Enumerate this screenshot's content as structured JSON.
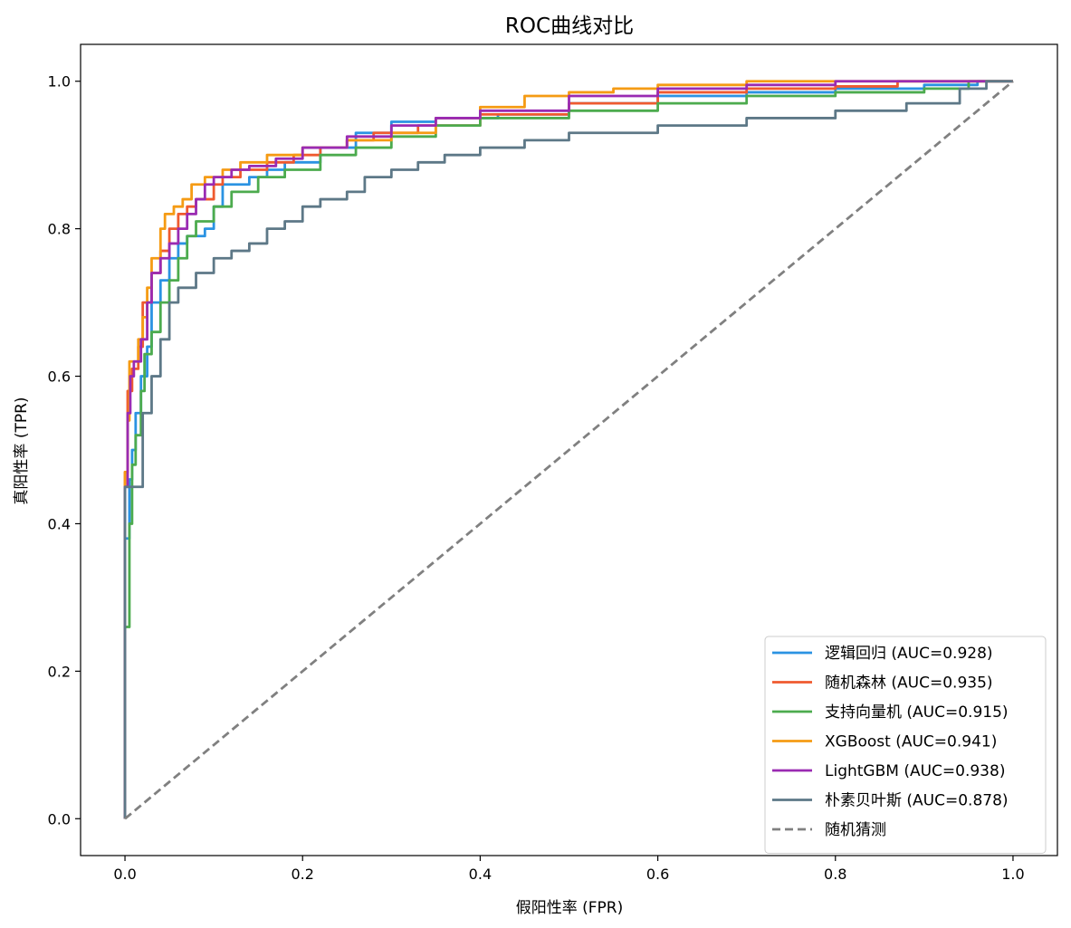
{
  "chart_data": {
    "type": "line",
    "title": "ROC曲线对比",
    "xlabel": "假阳性率 (FPR)",
    "ylabel": "真阳性率 (TPR)",
    "xlim": [
      -0.05,
      1.05
    ],
    "ylim": [
      -0.05,
      1.05
    ],
    "xticks": [
      "0.0",
      "0.2",
      "0.4",
      "0.6",
      "0.8",
      "1.0"
    ],
    "yticks": [
      "0.0",
      "0.2",
      "0.4",
      "0.6",
      "0.8",
      "1.0"
    ],
    "grid": false,
    "legend_position": "bottom-right",
    "series": [
      {
        "name": "逻辑回归 (AUC=0.928)",
        "color": "#2b93e2",
        "style": "solid",
        "points": [
          [
            0,
            0
          ],
          [
            0,
            0.2
          ],
          [
            0.005,
            0.38
          ],
          [
            0.008,
            0.46
          ],
          [
            0.012,
            0.5
          ],
          [
            0.018,
            0.55
          ],
          [
            0.025,
            0.6
          ],
          [
            0.03,
            0.64
          ],
          [
            0.04,
            0.7
          ],
          [
            0.05,
            0.73
          ],
          [
            0.06,
            0.76
          ],
          [
            0.07,
            0.78
          ],
          [
            0.09,
            0.79
          ],
          [
            0.1,
            0.8
          ],
          [
            0.11,
            0.83
          ],
          [
            0.12,
            0.86
          ],
          [
            0.14,
            0.86
          ],
          [
            0.16,
            0.87
          ],
          [
            0.18,
            0.88
          ],
          [
            0.22,
            0.89
          ],
          [
            0.26,
            0.91
          ],
          [
            0.3,
            0.93
          ],
          [
            0.35,
            0.945
          ],
          [
            0.42,
            0.95
          ],
          [
            0.5,
            0.955
          ],
          [
            0.6,
            0.97
          ],
          [
            0.7,
            0.98
          ],
          [
            0.8,
            0.985
          ],
          [
            0.9,
            0.99
          ],
          [
            0.96,
            0.995
          ],
          [
            1,
            1
          ]
        ]
      },
      {
        "name": "随机森林 (AUC=0.935)",
        "color": "#ef5a2f",
        "style": "solid",
        "points": [
          [
            0,
            0
          ],
          [
            0,
            0.3
          ],
          [
            0.003,
            0.47
          ],
          [
            0.008,
            0.58
          ],
          [
            0.015,
            0.61
          ],
          [
            0.02,
            0.64
          ],
          [
            0.03,
            0.7
          ],
          [
            0.04,
            0.74
          ],
          [
            0.05,
            0.77
          ],
          [
            0.06,
            0.8
          ],
          [
            0.07,
            0.82
          ],
          [
            0.08,
            0.83
          ],
          [
            0.1,
            0.84
          ],
          [
            0.11,
            0.86
          ],
          [
            0.13,
            0.87
          ],
          [
            0.16,
            0.88
          ],
          [
            0.19,
            0.89
          ],
          [
            0.22,
            0.9
          ],
          [
            0.25,
            0.91
          ],
          [
            0.28,
            0.92
          ],
          [
            0.33,
            0.93
          ],
          [
            0.4,
            0.94
          ],
          [
            0.5,
            0.955
          ],
          [
            0.6,
            0.97
          ],
          [
            0.7,
            0.985
          ],
          [
            0.8,
            0.99
          ],
          [
            0.87,
            0.993
          ],
          [
            0.92,
            1
          ],
          [
            1,
            1
          ]
        ]
      },
      {
        "name": "支持向量机 (AUC=0.915)",
        "color": "#4cab4e",
        "style": "solid",
        "points": [
          [
            0,
            0
          ],
          [
            0,
            0.1
          ],
          [
            0.005,
            0.26
          ],
          [
            0.008,
            0.4
          ],
          [
            0.012,
            0.48
          ],
          [
            0.018,
            0.52
          ],
          [
            0.022,
            0.58
          ],
          [
            0.03,
            0.63
          ],
          [
            0.04,
            0.66
          ],
          [
            0.05,
            0.7
          ],
          [
            0.06,
            0.73
          ],
          [
            0.07,
            0.76
          ],
          [
            0.08,
            0.79
          ],
          [
            0.1,
            0.81
          ],
          [
            0.12,
            0.83
          ],
          [
            0.15,
            0.85
          ],
          [
            0.18,
            0.87
          ],
          [
            0.22,
            0.88
          ],
          [
            0.26,
            0.9
          ],
          [
            0.3,
            0.91
          ],
          [
            0.35,
            0.925
          ],
          [
            0.4,
            0.94
          ],
          [
            0.5,
            0.95
          ],
          [
            0.6,
            0.96
          ],
          [
            0.7,
            0.97
          ],
          [
            0.8,
            0.98
          ],
          [
            0.9,
            0.985
          ],
          [
            0.95,
            0.99
          ],
          [
            1,
            1
          ]
        ]
      },
      {
        "name": "XGBoost (AUC=0.941)",
        "color": "#f59b14",
        "style": "solid",
        "points": [
          [
            0,
            0
          ],
          [
            0,
            0.35
          ],
          [
            0.003,
            0.47
          ],
          [
            0.005,
            0.54
          ],
          [
            0.008,
            0.62
          ],
          [
            0.015,
            0.62
          ],
          [
            0.02,
            0.65
          ],
          [
            0.025,
            0.68
          ],
          [
            0.03,
            0.72
          ],
          [
            0.04,
            0.76
          ],
          [
            0.045,
            0.8
          ],
          [
            0.055,
            0.82
          ],
          [
            0.065,
            0.83
          ],
          [
            0.075,
            0.84
          ],
          [
            0.09,
            0.86
          ],
          [
            0.11,
            0.87
          ],
          [
            0.13,
            0.88
          ],
          [
            0.16,
            0.89
          ],
          [
            0.2,
            0.9
          ],
          [
            0.25,
            0.91
          ],
          [
            0.3,
            0.92
          ],
          [
            0.35,
            0.93
          ],
          [
            0.4,
            0.95
          ],
          [
            0.45,
            0.965
          ],
          [
            0.5,
            0.98
          ],
          [
            0.55,
            0.985
          ],
          [
            0.6,
            0.99
          ],
          [
            0.7,
            0.995
          ],
          [
            0.8,
            1
          ],
          [
            1,
            1
          ]
        ]
      },
      {
        "name": "LightGBM (AUC=0.938)",
        "color": "#9a2bb2",
        "style": "solid",
        "points": [
          [
            0,
            0
          ],
          [
            0,
            0.35
          ],
          [
            0.003,
            0.45
          ],
          [
            0.006,
            0.55
          ],
          [
            0.01,
            0.6
          ],
          [
            0.018,
            0.62
          ],
          [
            0.025,
            0.65
          ],
          [
            0.03,
            0.7
          ],
          [
            0.04,
            0.74
          ],
          [
            0.05,
            0.76
          ],
          [
            0.06,
            0.78
          ],
          [
            0.07,
            0.8
          ],
          [
            0.08,
            0.82
          ],
          [
            0.09,
            0.84
          ],
          [
            0.1,
            0.86
          ],
          [
            0.12,
            0.87
          ],
          [
            0.14,
            0.88
          ],
          [
            0.17,
            0.885
          ],
          [
            0.2,
            0.895
          ],
          [
            0.25,
            0.91
          ],
          [
            0.3,
            0.925
          ],
          [
            0.35,
            0.94
          ],
          [
            0.4,
            0.95
          ],
          [
            0.5,
            0.96
          ],
          [
            0.6,
            0.98
          ],
          [
            0.7,
            0.99
          ],
          [
            0.8,
            0.995
          ],
          [
            0.9,
            1
          ],
          [
            1,
            1
          ]
        ]
      },
      {
        "name": "朴素贝叶斯 (AUC=0.878)",
        "color": "#5d7887",
        "style": "solid",
        "points": [
          [
            0,
            0
          ],
          [
            0.02,
            0.45
          ],
          [
            0.03,
            0.55
          ],
          [
            0.04,
            0.6
          ],
          [
            0.05,
            0.65
          ],
          [
            0.06,
            0.7
          ],
          [
            0.08,
            0.72
          ],
          [
            0.1,
            0.74
          ],
          [
            0.12,
            0.76
          ],
          [
            0.14,
            0.77
          ],
          [
            0.16,
            0.78
          ],
          [
            0.18,
            0.8
          ],
          [
            0.2,
            0.81
          ],
          [
            0.22,
            0.83
          ],
          [
            0.25,
            0.84
          ],
          [
            0.27,
            0.85
          ],
          [
            0.3,
            0.87
          ],
          [
            0.33,
            0.88
          ],
          [
            0.36,
            0.89
          ],
          [
            0.4,
            0.9
          ],
          [
            0.45,
            0.91
          ],
          [
            0.5,
            0.92
          ],
          [
            0.6,
            0.93
          ],
          [
            0.7,
            0.94
          ],
          [
            0.8,
            0.95
          ],
          [
            0.88,
            0.96
          ],
          [
            0.94,
            0.97
          ],
          [
            0.97,
            0.99
          ],
          [
            1,
            1
          ]
        ]
      },
      {
        "name": "随机猜测",
        "color": "#808080",
        "style": "dashed",
        "points": [
          [
            0,
            0
          ],
          [
            1,
            1
          ]
        ]
      }
    ]
  }
}
